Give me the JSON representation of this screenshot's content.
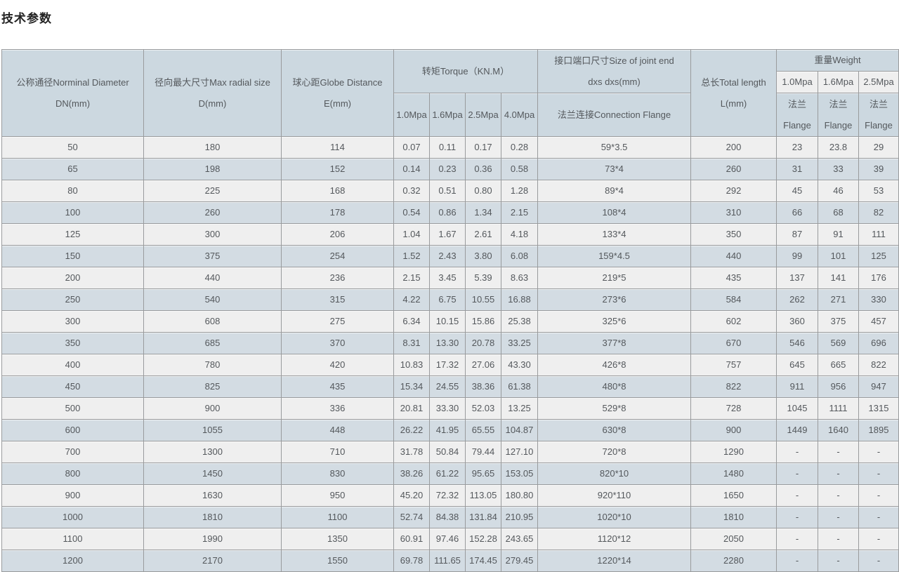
{
  "page": {
    "title": "技术参数"
  },
  "colors": {
    "header_bg": "#ccd8e0",
    "row_light": "#efefef",
    "row_blue": "#d3dce3",
    "border": "#999b9d",
    "text": "#54585c",
    "title_text": "#222222"
  },
  "table": {
    "header": {
      "dn": {
        "l1": "公称通径Norminal Diameter",
        "l2": "DN(mm)"
      },
      "d": {
        "l1": "径向最大尺寸Max radial size",
        "l2": "D(mm)"
      },
      "e": {
        "l1": "球心距Globe Distance",
        "l2": "E(mm)"
      },
      "torque": {
        "title": "转矩Torque（KN.M）",
        "subs": [
          "1.0Mpa",
          "1.6Mpa",
          "2.5Mpa",
          "4.0Mpa"
        ]
      },
      "joint": {
        "l1": "接口端口尺寸Size of joint end",
        "l2": "dxs dxs(mm)",
        "sub": "法兰连接Connection Flange"
      },
      "length": {
        "l1": "总长Total length",
        "l2": "L(mm)"
      },
      "weight": {
        "title": "重量Weight",
        "subs": [
          "1.0Mpa",
          "1.6Mpa",
          "2.5Mpa"
        ],
        "flange": {
          "l1": "法兰",
          "l2": "Flange"
        }
      }
    },
    "rows": [
      [
        "50",
        "180",
        "114",
        "0.07",
        "0.11",
        "0.17",
        "0.28",
        "59*3.5",
        "200",
        "23",
        "23.8",
        "29"
      ],
      [
        "65",
        "198",
        "152",
        "0.14",
        "0.23",
        "0.36",
        "0.58",
        "73*4",
        "260",
        "31",
        "33",
        "39"
      ],
      [
        "80",
        "225",
        "168",
        "0.32",
        "0.51",
        "0.80",
        "1.28",
        "89*4",
        "292",
        "45",
        "46",
        "53"
      ],
      [
        "100",
        "260",
        "178",
        "0.54",
        "0.86",
        "1.34",
        "2.15",
        "108*4",
        "310",
        "66",
        "68",
        "82"
      ],
      [
        "125",
        "300",
        "206",
        "1.04",
        "1.67",
        "2.61",
        "4.18",
        "133*4",
        "350",
        "87",
        "91",
        "111"
      ],
      [
        "150",
        "375",
        "254",
        "1.52",
        "2.43",
        "3.80",
        "6.08",
        "159*4.5",
        "440",
        "99",
        "101",
        "125"
      ],
      [
        "200",
        "440",
        "236",
        "2.15",
        "3.45",
        "5.39",
        "8.63",
        "219*5",
        "435",
        "137",
        "141",
        "176"
      ],
      [
        "250",
        "540",
        "315",
        "4.22",
        "6.75",
        "10.55",
        "16.88",
        "273*6",
        "584",
        "262",
        "271",
        "330"
      ],
      [
        "300",
        "608",
        "275",
        "6.34",
        "10.15",
        "15.86",
        "25.38",
        "325*6",
        "602",
        "360",
        "375",
        "457"
      ],
      [
        "350",
        "685",
        "370",
        "8.31",
        "13.30",
        "20.78",
        "33.25",
        "377*8",
        "670",
        "546",
        "569",
        "696"
      ],
      [
        "400",
        "780",
        "420",
        "10.83",
        "17.32",
        "27.06",
        "43.30",
        "426*8",
        "757",
        "645",
        "665",
        "822"
      ],
      [
        "450",
        "825",
        "435",
        "15.34",
        "24.55",
        "38.36",
        "61.38",
        "480*8",
        "822",
        "911",
        "956",
        "947"
      ],
      [
        "500",
        "900",
        "336",
        "20.81",
        "33.30",
        "52.03",
        "13.25",
        "529*8",
        "728",
        "1045",
        "1111",
        "1315"
      ],
      [
        "600",
        "1055",
        "448",
        "26.22",
        "41.95",
        "65.55",
        "104.87",
        "630*8",
        "900",
        "1449",
        "1640",
        "1895"
      ],
      [
        "700",
        "1300",
        "710",
        "31.78",
        "50.84",
        "79.44",
        "127.10",
        "720*8",
        "1290",
        "-",
        "-",
        "-"
      ],
      [
        "800",
        "1450",
        "830",
        "38.26",
        "61.22",
        "95.65",
        "153.05",
        "820*10",
        "1480",
        "-",
        "-",
        "-"
      ],
      [
        "900",
        "1630",
        "950",
        "45.20",
        "72.32",
        "113.05",
        "180.80",
        "920*110",
        "1650",
        "-",
        "-",
        "-"
      ],
      [
        "1000",
        "1810",
        "1100",
        "52.74",
        "84.38",
        "131.84",
        "210.95",
        "1020*10",
        "1810",
        "-",
        "-",
        "-"
      ],
      [
        "1100",
        "1990",
        "1350",
        "60.91",
        "97.46",
        "152.28",
        "243.65",
        "1120*12",
        "2050",
        "-",
        "-",
        "-"
      ],
      [
        "1200",
        "2170",
        "1550",
        "69.78",
        "111.65",
        "174.45",
        "279.45",
        "1220*14",
        "2280",
        "-",
        "-",
        "-"
      ]
    ]
  }
}
